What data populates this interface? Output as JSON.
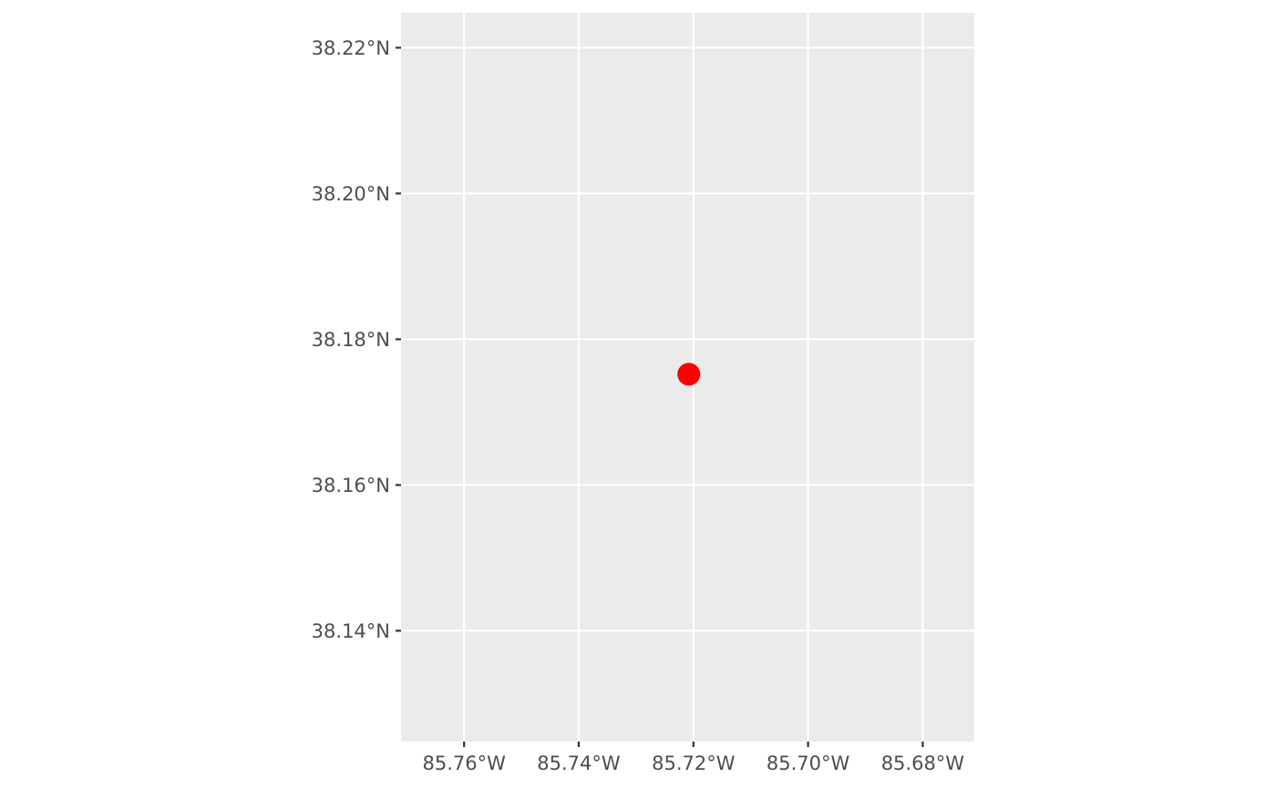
{
  "chart_data": {
    "type": "scatter",
    "title": "",
    "xlabel": "",
    "ylabel": "",
    "xlim": [
      -85.771,
      -85.671
    ],
    "ylim": [
      38.1248,
      38.2248
    ],
    "x_ticks": [
      {
        "value": -85.76,
        "label": "85.76°W"
      },
      {
        "value": -85.74,
        "label": "85.74°W"
      },
      {
        "value": -85.72,
        "label": "85.72°W"
      },
      {
        "value": -85.7,
        "label": "85.70°W"
      },
      {
        "value": -85.68,
        "label": "85.68°W"
      }
    ],
    "y_ticks": [
      {
        "value": 38.14,
        "label": "38.14°N"
      },
      {
        "value": 38.16,
        "label": "38.16°N"
      },
      {
        "value": 38.18,
        "label": "38.18°N"
      },
      {
        "value": 38.2,
        "label": "38.20°N"
      },
      {
        "value": 38.22,
        "label": "38.22°N"
      }
    ],
    "points": [
      {
        "x": -85.7208,
        "y": 38.1752,
        "color": "#ff0000"
      }
    ],
    "grid": true
  },
  "colors": {
    "panel_background": "#ebebeb",
    "grid": "#ffffff",
    "tick_mark": "#333333",
    "tick_label": "#4d4d4d",
    "point": "#ff0000"
  }
}
